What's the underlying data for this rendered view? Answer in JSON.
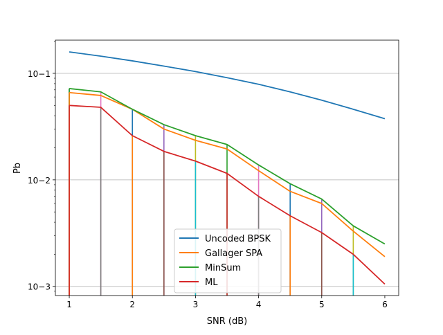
{
  "chart_data": {
    "type": "line",
    "xlabel": "SNR (dB)",
    "ylabel": "Pb",
    "xlim": [
      0.78,
      6.22
    ],
    "ylim": [
      0.00082,
      0.205
    ],
    "yscale": "log",
    "grid": "horizontal major gridlines",
    "legend_position": "lower center",
    "x_ticks": [
      1,
      2,
      3,
      4,
      5,
      6
    ],
    "x_tick_labels": [
      "1",
      "2",
      "3",
      "4",
      "5",
      "6"
    ],
    "y_ticks": [
      0.001,
      0.01,
      0.1
    ],
    "y_tick_labels": [
      "10−3",
      "10−2",
      "10−1"
    ],
    "series": [
      {
        "name": "Uncoded BPSK",
        "color": "#1f77b4",
        "x": [
          1,
          1.5,
          2,
          2.5,
          3,
          3.5,
          4,
          4.5,
          5,
          5.5,
          6
        ],
        "y": [
          0.159,
          0.145,
          0.131,
          0.117,
          0.104,
          0.091,
          0.079,
          0.067,
          0.056,
          0.046,
          0.0375
        ]
      },
      {
        "name": "Gallager SPA",
        "color": "#ff7f0e",
        "x": [
          1,
          1.5,
          2,
          2.5,
          3,
          3.5,
          4,
          4.5,
          5,
          5.5,
          6
        ],
        "y": [
          0.066,
          0.062,
          0.046,
          0.03,
          0.0235,
          0.0195,
          0.0122,
          0.0078,
          0.006,
          0.0033,
          0.0019
        ]
      },
      {
        "name": "MinSum",
        "color": "#2ca02c",
        "x": [
          1,
          1.5,
          2,
          2.5,
          3,
          3.5,
          4,
          4.5,
          5,
          5.5,
          6
        ],
        "y": [
          0.072,
          0.067,
          0.046,
          0.033,
          0.026,
          0.0215,
          0.0138,
          0.0092,
          0.0066,
          0.0037,
          0.0025
        ]
      },
      {
        "name": "ML",
        "color": "#d62728",
        "x": [
          1,
          1.5,
          2,
          2.5,
          3,
          3.5,
          4,
          4.5,
          5,
          5.5,
          6
        ],
        "y": [
          0.05,
          0.048,
          0.026,
          0.0185,
          0.015,
          0.0115,
          0.007,
          0.0046,
          0.0032,
          0.002,
          0.00105
        ]
      }
    ],
    "vertical_lines": [
      {
        "x": 1,
        "y_top": 0.072,
        "color": "#1f77b4"
      },
      {
        "x": 1,
        "y_top": 0.072,
        "color": "#2ca02c"
      },
      {
        "x": 1,
        "y_top": 0.066,
        "color": "#ff7f0e"
      },
      {
        "x": 1,
        "y_top": 0.05,
        "color": "#d62728"
      },
      {
        "x": 1.5,
        "y_top": 0.067,
        "color": "#e377c2"
      },
      {
        "x": 1.5,
        "y_top": 0.048,
        "color": "#7f7f7f"
      },
      {
        "x": 2,
        "y_top": 0.046,
        "color": "#1f77b4"
      },
      {
        "x": 2,
        "y_top": 0.026,
        "color": "#ff7f0e"
      },
      {
        "x": 2.5,
        "y_top": 0.033,
        "color": "#9467bd"
      },
      {
        "x": 2.5,
        "y_top": 0.0185,
        "color": "#8c564b"
      },
      {
        "x": 3,
        "y_top": 0.026,
        "color": "#bcbd22"
      },
      {
        "x": 3,
        "y_top": 0.015,
        "color": "#17becf"
      },
      {
        "x": 3.5,
        "y_top": 0.0215,
        "color": "#2ca02c"
      },
      {
        "x": 3.5,
        "y_top": 0.0115,
        "color": "#d62728"
      },
      {
        "x": 4,
        "y_top": 0.0138,
        "color": "#e377c2"
      },
      {
        "x": 4,
        "y_top": 0.007,
        "color": "#7f7f7f"
      },
      {
        "x": 4.5,
        "y_top": 0.0092,
        "color": "#1f77b4"
      },
      {
        "x": 4.5,
        "y_top": 0.0046,
        "color": "#ff7f0e"
      },
      {
        "x": 5,
        "y_top": 0.0066,
        "color": "#9467bd"
      },
      {
        "x": 5,
        "y_top": 0.0032,
        "color": "#8c564b"
      },
      {
        "x": 5.5,
        "y_top": 0.0037,
        "color": "#bcbd22"
      },
      {
        "x": 5.5,
        "y_top": 0.002,
        "color": "#17becf"
      }
    ]
  }
}
